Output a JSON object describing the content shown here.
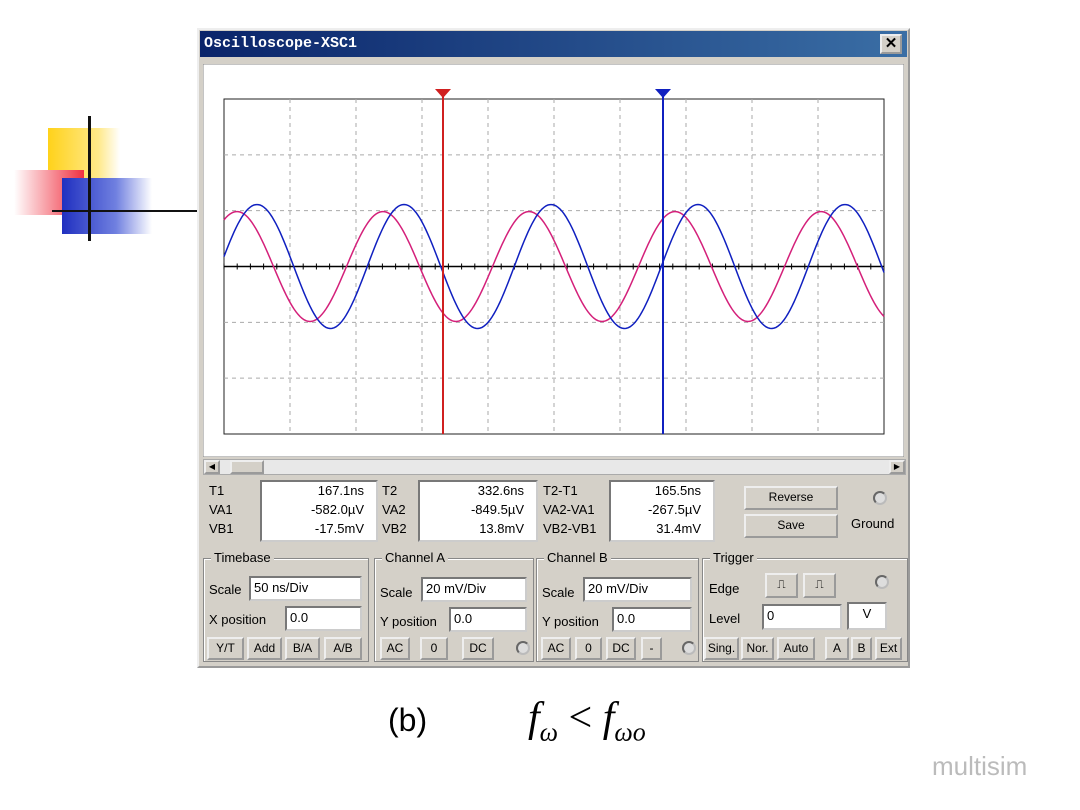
{
  "window": {
    "title": "Oscilloscope-XSC1"
  },
  "readouts": [
    {
      "labels": [
        "T1",
        "VA1",
        "VB1"
      ],
      "values": [
        "167.1ns",
        "-582.0µV",
        "-17.5mV"
      ]
    },
    {
      "labels": [
        "T2",
        "VA2",
        "VB2"
      ],
      "values": [
        "332.6ns",
        "-849.5µV",
        "13.8mV"
      ]
    },
    {
      "labels": [
        "T2-T1",
        "VA2-VA1",
        "VB2-VB1"
      ],
      "values": [
        "165.5ns",
        "-267.5µV",
        "31.4mV"
      ]
    }
  ],
  "buttons": {
    "reverse": "Reverse",
    "save": "Save",
    "ground": "Ground"
  },
  "timebase": {
    "title": "Timebase",
    "scale_label": "Scale",
    "scale": "50 ns/Div",
    "pos_label": "X position",
    "pos": "0.0",
    "modes": [
      "Y/T",
      "Add",
      "B/A",
      "A/B"
    ]
  },
  "channel_a": {
    "title": "Channel A",
    "scale_label": "Scale",
    "scale": "20 mV/Div",
    "pos_label": "Y position",
    "pos": "0.0",
    "modes": [
      "AC",
      "0",
      "DC"
    ]
  },
  "channel_b": {
    "title": "Channel B",
    "scale_label": "Scale",
    "scale": "20 mV/Div",
    "pos_label": "Y position",
    "pos": "0.0",
    "modes": [
      "AC",
      "0",
      "DC",
      "-"
    ]
  },
  "trigger": {
    "title": "Trigger",
    "edge_label": "Edge",
    "level_label": "Level",
    "level": "0",
    "unit": "V",
    "modes": [
      "Sing.",
      "Nor.",
      "Auto"
    ],
    "sources": [
      "A",
      "B",
      "Ext"
    ]
  },
  "caption": {
    "label": "(b)",
    "f1": "f",
    "sub1": "ω",
    "op": "<",
    "f2": "f",
    "sub2": "ωo"
  },
  "watermark": "multisim"
}
